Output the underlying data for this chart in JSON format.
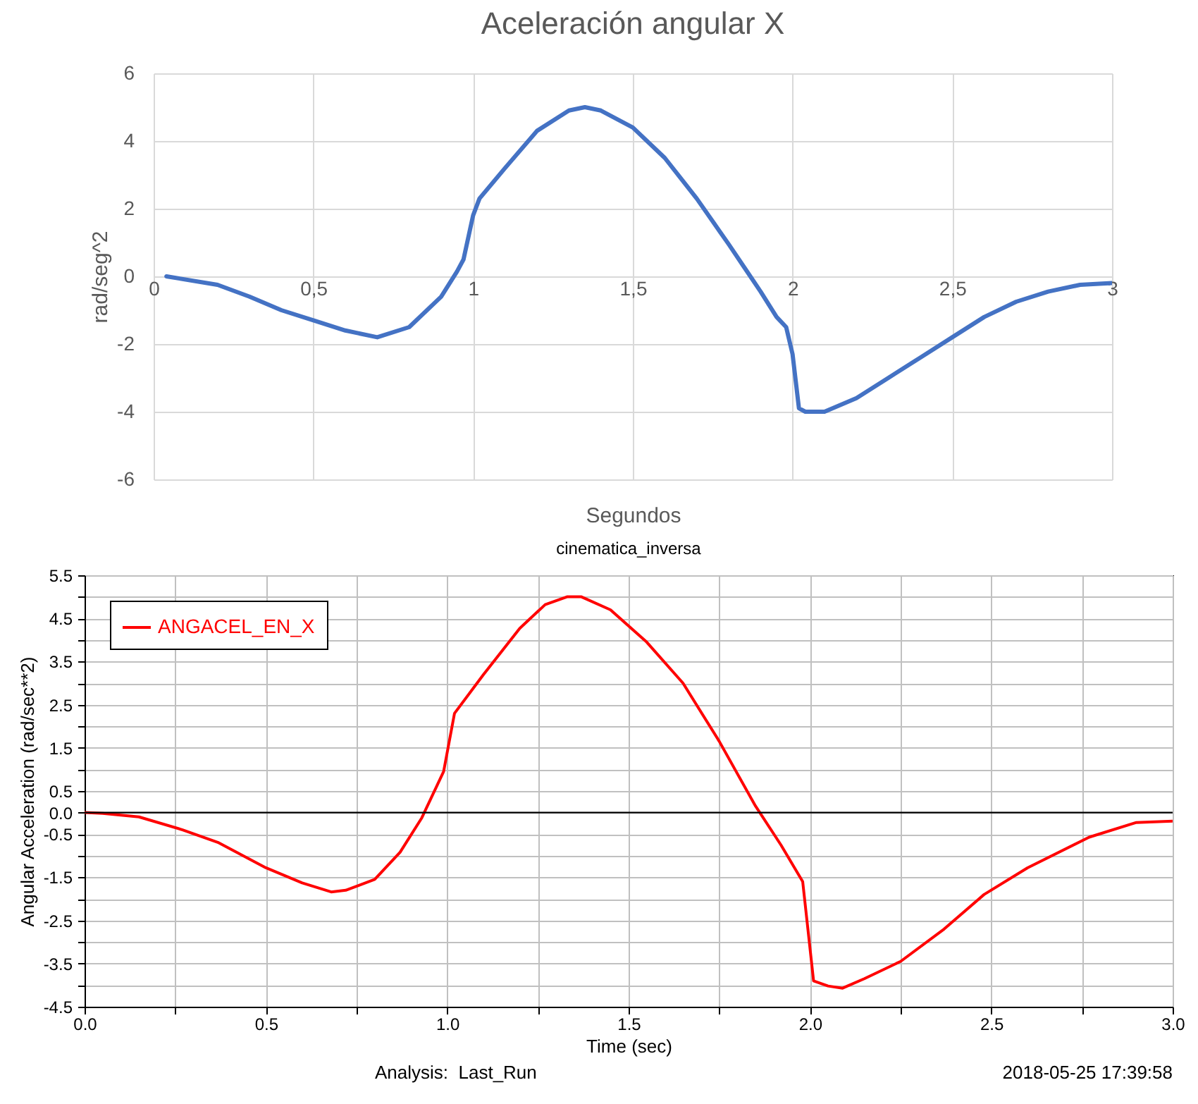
{
  "chart_data": [
    {
      "type": "line",
      "title": "Aceleración angular X",
      "xlabel": "Segundos",
      "ylabel": "rad/seg^2",
      "xlim": [
        0,
        3
      ],
      "xticks": [
        0,
        {
          "value": 0.5,
          "label": "0,5"
        },
        1,
        {
          "value": 1.5,
          "label": "1,5"
        },
        2,
        {
          "value": 2.5,
          "label": "2,5"
        },
        3
      ],
      "ylim": [
        -6,
        6
      ],
      "yticks": [
        -6,
        -4,
        -2,
        0,
        2,
        4,
        6
      ],
      "grid": true,
      "series": [
        {
          "color": "#4472c4",
          "x": [
            0.04,
            0.2,
            0.3,
            0.4,
            0.5,
            0.6,
            0.7,
            0.8,
            0.9,
            0.95,
            0.97,
            1.0,
            1.02,
            1.1,
            1.2,
            1.3,
            1.35,
            1.4,
            1.5,
            1.6,
            1.7,
            1.8,
            1.85,
            1.9,
            1.95,
            1.98,
            2.0,
            2.02,
            2.04,
            2.1,
            2.2,
            2.3,
            2.4,
            2.5,
            2.6,
            2.7,
            2.8,
            2.9,
            3.0
          ],
          "values": [
            0,
            -0.25,
            -0.6,
            -1.0,
            -1.3,
            -1.6,
            -1.8,
            -1.5,
            -0.6,
            0.15,
            0.5,
            1.8,
            2.3,
            3.2,
            4.3,
            4.9,
            5.0,
            4.9,
            4.4,
            3.5,
            2.3,
            0.95,
            0.25,
            -0.45,
            -1.2,
            -1.5,
            -2.3,
            -3.9,
            -4.0,
            -4.0,
            -3.6,
            -3.0,
            -2.4,
            -1.8,
            -1.2,
            -0.75,
            -0.45,
            -0.25,
            -0.2
          ]
        }
      ]
    },
    {
      "type": "line",
      "title": "cinematica_inversa",
      "xlabel": "Time (sec)",
      "ylabel": "Angular Acceleration (rad/sec**2)",
      "annotations": [
        "Analysis:  Last_Run",
        "2018-05-25 17:39:58"
      ],
      "xlim": [
        0,
        3
      ],
      "xticks": [
        {
          "value": 0,
          "label": "0.0"
        },
        {
          "value": 0.25,
          "label": null
        },
        0.5,
        {
          "value": 0.75,
          "label": null
        },
        {
          "value": 1,
          "label": "1.0"
        },
        {
          "value": 1.25,
          "label": null
        },
        1.5,
        {
          "value": 1.75,
          "label": null
        },
        {
          "value": 2,
          "label": "2.0"
        },
        {
          "value": 2.25,
          "label": null
        },
        2.5,
        {
          "value": 2.75,
          "label": null
        },
        {
          "value": 3,
          "label": "3.0"
        }
      ],
      "ylim": [
        -4.5,
        5.5
      ],
      "yticks": [
        -4.5,
        {
          "value": -4,
          "label": null
        },
        -3.5,
        {
          "value": -3,
          "label": null
        },
        -2.5,
        {
          "value": -2,
          "label": null
        },
        -1.5,
        {
          "value": -1,
          "label": null
        },
        -0.5,
        {
          "value": 0,
          "label": "0.0"
        },
        0.5,
        {
          "value": 1,
          "label": null
        },
        1.5,
        {
          "value": 2,
          "label": null
        },
        2.5,
        {
          "value": 3,
          "label": null
        },
        3.5,
        {
          "value": 4,
          "label": null
        },
        4.5,
        {
          "value": 5,
          "label": null
        },
        5.5
      ],
      "grid": true,
      "legend": "top left",
      "ref_lines": [
        {
          "axis": "y",
          "value": 0,
          "color": "#000000"
        }
      ],
      "series": [
        {
          "name": "ANGACEL_EN_X",
          "color": "#ff0000",
          "x": [
            0,
            0.05,
            0.15,
            0.27,
            0.37,
            0.5,
            0.6,
            0.68,
            0.72,
            0.8,
            0.87,
            0.93,
            0.99,
            1.02,
            1.1,
            1.2,
            1.27,
            1.33,
            1.37,
            1.45,
            1.55,
            1.65,
            1.75,
            1.85,
            1.92,
            1.98,
            2.01,
            2.05,
            2.09,
            2.15,
            2.25,
            2.37,
            2.48,
            2.6,
            2.77,
            2.9,
            3.0
          ],
          "values": [
            0,
            -0.02,
            -0.1,
            -0.4,
            -0.7,
            -1.28,
            -1.63,
            -1.84,
            -1.8,
            -1.55,
            -0.92,
            -0.12,
            0.95,
            2.3,
            3.2,
            4.27,
            4.82,
            5.0,
            5.0,
            4.7,
            3.95,
            3.0,
            1.65,
            0.15,
            -0.75,
            -1.6,
            -3.9,
            -4.02,
            -4.07,
            -3.85,
            -3.45,
            -2.7,
            -1.9,
            -1.28,
            -0.57,
            -0.23,
            -0.2
          ]
        }
      ]
    }
  ]
}
